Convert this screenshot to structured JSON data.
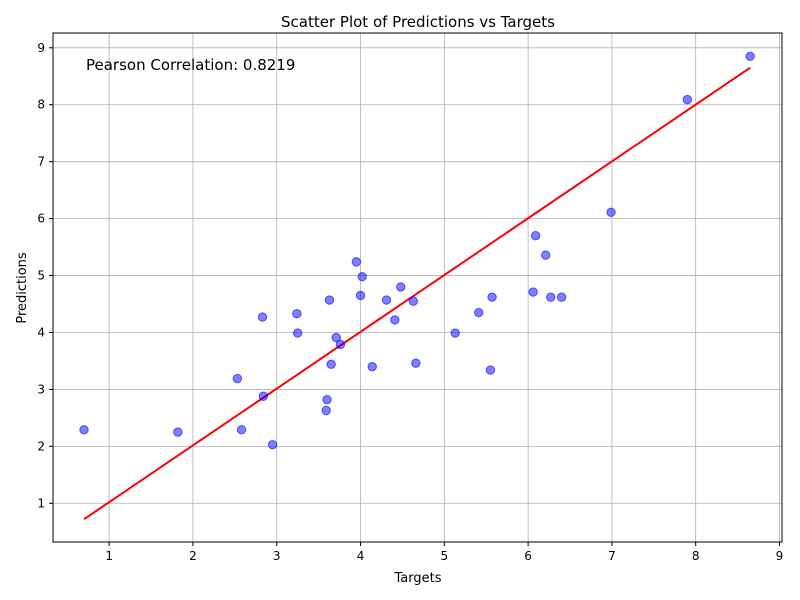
{
  "chart_data": {
    "type": "scatter",
    "title": "Scatter Plot of Predictions vs Targets",
    "xlabel": "Targets",
    "ylabel": "Predictions",
    "xlim": [
      0.33,
      9.03
    ],
    "ylim": [
      0.32,
      9.26
    ],
    "xticks": [
      1,
      2,
      3,
      4,
      5,
      6,
      7,
      8,
      9
    ],
    "yticks": [
      1,
      2,
      3,
      4,
      5,
      6,
      7,
      8,
      9
    ],
    "grid": true,
    "annotation": "Pearson Correlation: 0.8219",
    "point_color": "#0000ff",
    "line_color": "#ff0000",
    "fit_line": {
      "x": [
        0.7,
        8.65
      ],
      "y": [
        0.72,
        8.65
      ]
    },
    "points": [
      {
        "x": 0.7,
        "y": 2.29
      },
      {
        "x": 1.82,
        "y": 2.25
      },
      {
        "x": 2.53,
        "y": 3.19
      },
      {
        "x": 2.58,
        "y": 2.29
      },
      {
        "x": 2.83,
        "y": 4.27
      },
      {
        "x": 2.84,
        "y": 2.88
      },
      {
        "x": 2.95,
        "y": 2.03
      },
      {
        "x": 3.24,
        "y": 4.33
      },
      {
        "x": 3.25,
        "y": 3.99
      },
      {
        "x": 3.59,
        "y": 2.63
      },
      {
        "x": 3.6,
        "y": 2.82
      },
      {
        "x": 3.63,
        "y": 4.57
      },
      {
        "x": 3.65,
        "y": 3.44
      },
      {
        "x": 3.71,
        "y": 3.91
      },
      {
        "x": 3.76,
        "y": 3.79
      },
      {
        "x": 3.95,
        "y": 5.24
      },
      {
        "x": 4.0,
        "y": 4.65
      },
      {
        "x": 4.02,
        "y": 4.98
      },
      {
        "x": 4.14,
        "y": 3.4
      },
      {
        "x": 4.31,
        "y": 4.57
      },
      {
        "x": 4.41,
        "y": 4.22
      },
      {
        "x": 4.48,
        "y": 4.8
      },
      {
        "x": 4.63,
        "y": 4.55
      },
      {
        "x": 4.66,
        "y": 3.46
      },
      {
        "x": 5.13,
        "y": 3.99
      },
      {
        "x": 5.41,
        "y": 4.35
      },
      {
        "x": 5.55,
        "y": 3.34
      },
      {
        "x": 5.57,
        "y": 4.62
      },
      {
        "x": 6.06,
        "y": 4.71
      },
      {
        "x": 6.09,
        "y": 5.7
      },
      {
        "x": 6.21,
        "y": 5.36
      },
      {
        "x": 6.27,
        "y": 4.62
      },
      {
        "x": 6.4,
        "y": 4.62
      },
      {
        "x": 6.99,
        "y": 6.11
      },
      {
        "x": 7.9,
        "y": 8.09
      },
      {
        "x": 8.65,
        "y": 8.85
      }
    ]
  }
}
